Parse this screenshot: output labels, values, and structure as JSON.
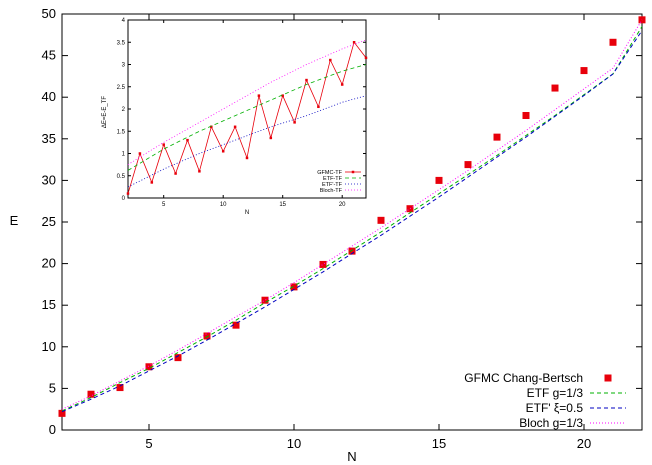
{
  "chart_data": [
    {
      "type": "scatter",
      "title": "",
      "xlabel": "N",
      "ylabel": "E",
      "xlim": [
        2,
        22
      ],
      "ylim": [
        0,
        50
      ],
      "xticks": [
        5,
        10,
        15,
        20
      ],
      "yticks": [
        0,
        5,
        10,
        15,
        20,
        25,
        30,
        35,
        40,
        45,
        50
      ],
      "grid": false,
      "legend_position": "bottom-right",
      "series": [
        {
          "name": "GFMC Chang-Bertsch",
          "style": "points",
          "color": "#e8000b",
          "x": [
            2,
            3,
            4,
            5,
            6,
            7,
            8,
            9,
            10,
            11,
            12,
            13,
            14,
            15,
            16,
            17,
            18,
            19,
            20,
            21,
            22
          ],
          "y": [
            2.0,
            4.3,
            5.1,
            7.6,
            8.7,
            11.3,
            12.6,
            15.6,
            17.2,
            19.9,
            21.5,
            25.2,
            26.6,
            30.0,
            31.9,
            35.2,
            37.8,
            41.1,
            43.2,
            46.6,
            49.3
          ]
        },
        {
          "name": "ETF g=1/3",
          "style": "dashed",
          "color": "#00b000",
          "x": [
            2,
            3,
            4,
            5,
            6,
            7,
            8,
            9,
            10,
            11,
            12,
            13,
            14,
            15,
            16,
            17,
            18,
            19,
            20,
            21,
            22
          ],
          "y": [
            2.3,
            3.9,
            5.7,
            7.4,
            9.3,
            11.2,
            13.2,
            15.3,
            17.3,
            19.4,
            21.6,
            23.8,
            26.1,
            28.4,
            30.7,
            33.0,
            35.4,
            37.8,
            40.3,
            42.8,
            48.5
          ]
        },
        {
          "name": "ETF' ξ=0.5",
          "style": "dashed",
          "color": "#0000c0",
          "x": [
            2,
            3,
            4,
            5,
            6,
            7,
            8,
            9,
            10,
            11,
            12,
            13,
            14,
            15,
            16,
            17,
            18,
            19,
            20,
            21,
            22
          ],
          "y": [
            2.2,
            3.7,
            5.3,
            7.1,
            8.9,
            10.8,
            12.8,
            14.8,
            16.9,
            19.0,
            21.2,
            23.4,
            25.7,
            28.0,
            30.4,
            32.8,
            35.2,
            37.7,
            40.2,
            42.8,
            48.0
          ]
        },
        {
          "name": "Bloch g=1/3",
          "style": "dotted",
          "color": "#ff00ff",
          "x": [
            2,
            3,
            4,
            5,
            6,
            7,
            8,
            9,
            10,
            11,
            12,
            13,
            14,
            15,
            16,
            17,
            18,
            19,
            20,
            21,
            22
          ],
          "y": [
            2.5,
            4.1,
            5.9,
            7.7,
            9.6,
            11.6,
            13.6,
            15.6,
            17.7,
            19.9,
            22.1,
            24.3,
            26.6,
            28.9,
            31.2,
            33.6,
            36.0,
            38.5,
            41.0,
            43.5,
            49.3
          ]
        }
      ]
    },
    {
      "type": "line",
      "title": "",
      "xlabel": "N",
      "ylabel": "ΔE=E-E_TF",
      "xlim": [
        2,
        22
      ],
      "ylim": [
        0,
        4
      ],
      "xticks": [
        5,
        10,
        15,
        20
      ],
      "yticks": [
        0,
        0.5,
        1,
        1.5,
        2,
        2.5,
        3,
        3.5,
        4
      ],
      "grid": false,
      "legend_position": "bottom-right",
      "series": [
        {
          "name": "GFMC-TF",
          "style": "linespoints",
          "color": "#e8000b",
          "x": [
            2,
            3,
            4,
            5,
            6,
            7,
            8,
            9,
            10,
            11,
            12,
            13,
            14,
            15,
            16,
            17,
            18,
            19,
            20,
            21,
            22
          ],
          "y": [
            0.1,
            1.0,
            0.35,
            1.2,
            0.55,
            1.3,
            0.6,
            1.6,
            1.05,
            1.6,
            0.9,
            2.3,
            1.35,
            2.3,
            1.7,
            2.65,
            2.05,
            3.1,
            2.55,
            3.5,
            3.15
          ]
        },
        {
          "name": "ETF-TF",
          "style": "dashed",
          "color": "#00b000",
          "x": [
            2,
            5,
            8,
            11,
            14,
            17,
            20,
            22
          ],
          "y": [
            0.62,
            1.1,
            1.5,
            1.85,
            2.2,
            2.55,
            2.85,
            3.0
          ]
        },
        {
          "name": "ETF'-TF",
          "style": "dotted",
          "color": "#0000c0",
          "x": [
            2,
            5,
            8,
            11,
            14,
            17,
            20,
            22
          ],
          "y": [
            0.25,
            0.65,
            1.0,
            1.3,
            1.6,
            1.85,
            2.15,
            2.3
          ]
        },
        {
          "name": "Bloch-TF",
          "style": "dotted",
          "color": "#ff00ff",
          "x": [
            2,
            5,
            8,
            11,
            14,
            17,
            20,
            22
          ],
          "y": [
            0.75,
            1.25,
            1.7,
            2.15,
            2.6,
            3.0,
            3.35,
            3.55
          ]
        }
      ]
    }
  ]
}
